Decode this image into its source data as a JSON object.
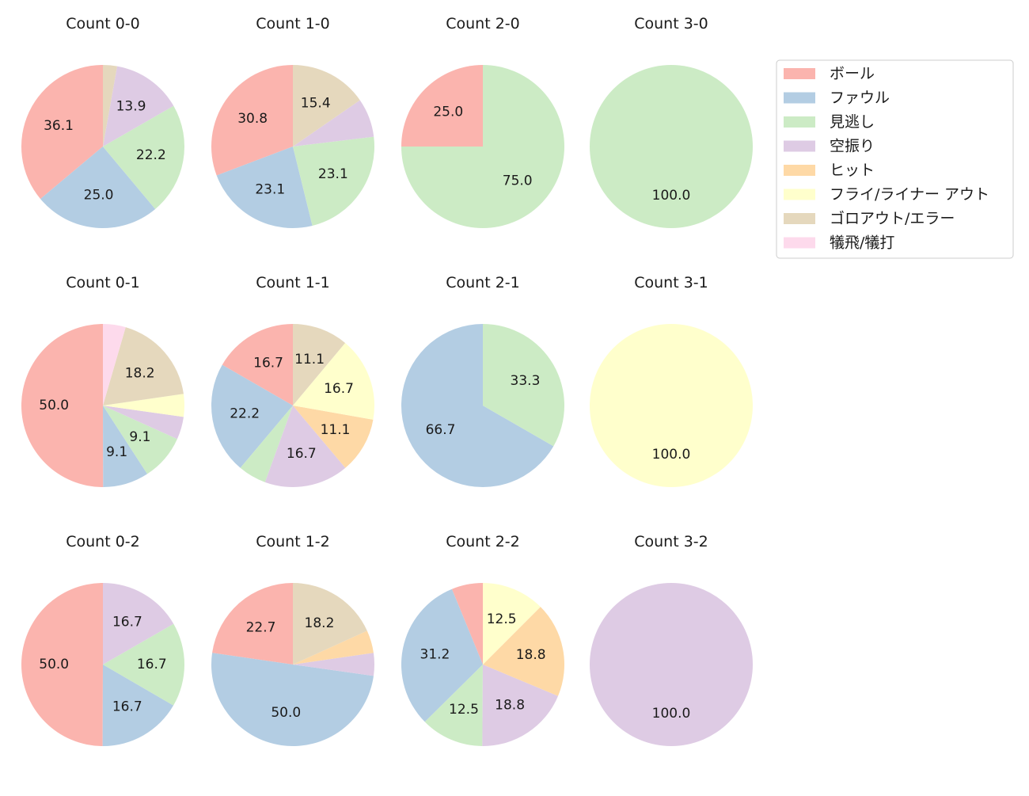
{
  "chart_data": {
    "type": "pie",
    "categories": [
      "ボール",
      "ファウル",
      "見逃し",
      "空振り",
      "ヒット",
      "フライ/ライナー アウト",
      "ゴロアウト/エラー",
      "犠飛/犠打"
    ],
    "colors": [
      "#fbb4ae",
      "#b3cde3",
      "#ccebc5",
      "#decbe4",
      "#fed9a6",
      "#ffffcc",
      "#e5d8bd",
      "#fddaec"
    ],
    "legend": {
      "placement": "top-right"
    },
    "charts": [
      {
        "title": "Count 0-0",
        "values": [
          36.1,
          25.0,
          22.2,
          13.9,
          0,
          0,
          2.8,
          0
        ]
      },
      {
        "title": "Count 1-0",
        "values": [
          30.8,
          23.1,
          23.1,
          7.7,
          0,
          0,
          15.4,
          0
        ]
      },
      {
        "title": "Count 2-0",
        "values": [
          25.0,
          0,
          75.0,
          0,
          0,
          0,
          0,
          0
        ]
      },
      {
        "title": "Count 3-0",
        "values": [
          0,
          0,
          100.0,
          0,
          0,
          0,
          0,
          0
        ]
      },
      {
        "title": "Count 0-1",
        "values": [
          50.0,
          9.1,
          9.1,
          4.5,
          0,
          4.5,
          18.2,
          4.5
        ]
      },
      {
        "title": "Count 1-1",
        "values": [
          16.7,
          22.2,
          5.6,
          16.7,
          11.1,
          16.7,
          11.1,
          0
        ]
      },
      {
        "title": "Count 2-1",
        "values": [
          0,
          66.7,
          33.3,
          0,
          0,
          0,
          0,
          0
        ]
      },
      {
        "title": "Count 3-1",
        "values": [
          0,
          0,
          0,
          0,
          0,
          100.0,
          0,
          0
        ]
      },
      {
        "title": "Count 0-2",
        "values": [
          50.0,
          16.7,
          16.7,
          16.7,
          0,
          0,
          0,
          0
        ]
      },
      {
        "title": "Count 1-2",
        "values": [
          22.7,
          50.0,
          0,
          4.5,
          4.5,
          0,
          18.2,
          0
        ]
      },
      {
        "title": "Count 2-2",
        "values": [
          6.2,
          31.2,
          12.5,
          18.8,
          18.8,
          12.5,
          0,
          0
        ]
      },
      {
        "title": "Count 3-2",
        "values": [
          0,
          0,
          0,
          100.0,
          0,
          0,
          0,
          0
        ]
      }
    ]
  }
}
